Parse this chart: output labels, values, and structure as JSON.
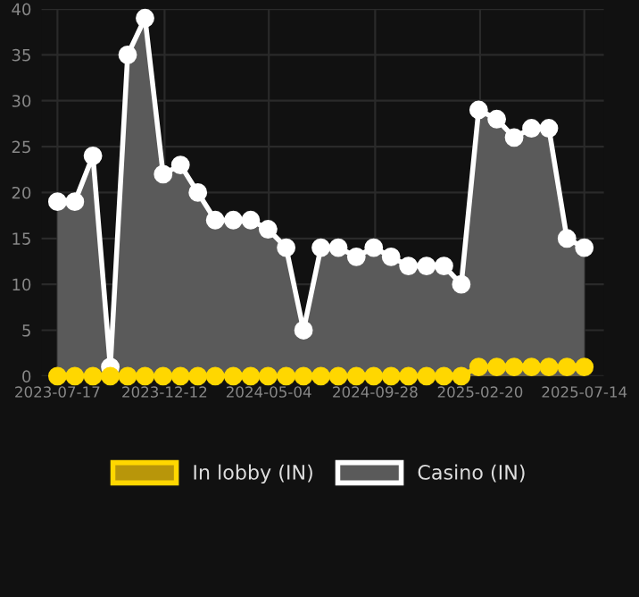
{
  "chart_data": {
    "type": "area",
    "x": [
      "2023-07-17",
      "2023-08-10",
      "2023-09-04",
      "2023-09-28",
      "2023-10-22",
      "2023-11-15",
      "2023-12-10",
      "2024-01-03",
      "2024-01-27",
      "2024-02-20",
      "2024-03-16",
      "2024-04-09",
      "2024-05-03",
      "2024-05-28",
      "2024-06-21",
      "2024-07-15",
      "2024-08-08",
      "2024-09-02",
      "2024-09-26",
      "2024-10-20",
      "2024-11-13",
      "2024-12-08",
      "2025-01-01",
      "2025-01-25",
      "2025-02-18",
      "2025-03-15",
      "2025-04-08",
      "2025-05-02",
      "2025-05-26",
      "2025-06-20",
      "2025-07-14"
    ],
    "series": [
      {
        "name": "In lobby (IN)",
        "color": "#ffd700",
        "values": [
          0,
          0,
          0,
          0,
          0,
          0,
          0,
          0,
          0,
          0,
          0,
          0,
          0,
          0,
          0,
          0,
          0,
          0,
          0,
          0,
          0,
          0,
          0,
          0,
          1,
          1,
          1,
          1,
          1,
          1,
          1
        ]
      },
      {
        "name": "Casino (IN)",
        "color": "#ffffff",
        "values": [
          19,
          19,
          24,
          1,
          35,
          39,
          22,
          23,
          20,
          17,
          17,
          17,
          16,
          14,
          5,
          14,
          14,
          13,
          14,
          13,
          12,
          12,
          12,
          10,
          29,
          28,
          26,
          27,
          27,
          15,
          14
        ]
      }
    ],
    "xlim": [
      "2023-06-25",
      "2025-08-10"
    ],
    "xticks": [
      {
        "value": "2023-07-17",
        "label": "2023-07-17"
      },
      {
        "value": "2023-12-12",
        "label": "2023-12-12"
      },
      {
        "value": "2024-05-04",
        "label": "2024-05-04"
      },
      {
        "value": "2024-09-28",
        "label": "2024-09-28"
      },
      {
        "value": "2025-02-20",
        "label": "2025-02-20"
      },
      {
        "value": "2025-07-14",
        "label": "2025-07-14"
      }
    ],
    "ylim": [
      0,
      40
    ],
    "yticks": [
      0,
      5,
      10,
      15,
      20,
      25,
      30,
      35,
      40
    ],
    "grid": true,
    "legend": "bottom",
    "marker": "circle",
    "line_style": "solid"
  }
}
